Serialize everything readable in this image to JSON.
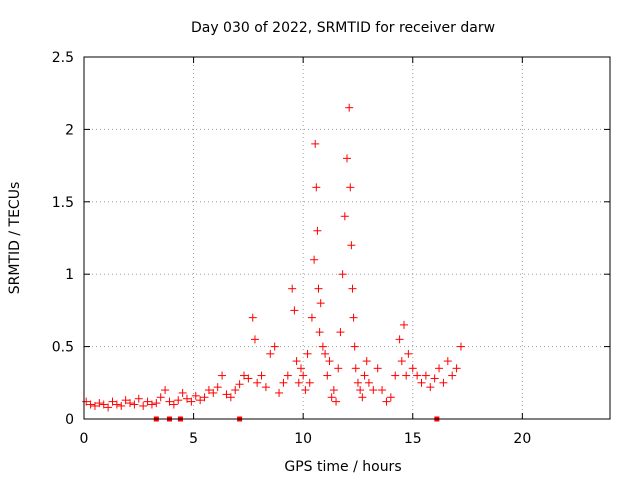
{
  "chart_data": {
    "type": "scatter",
    "title": "Day 030 of 2022, SRMTID for receiver darw",
    "xlabel": "GPS time / hours",
    "ylabel": "SRMTID / TECUs",
    "xlim": [
      0,
      24
    ],
    "ylim": [
      0,
      2.5
    ],
    "x_ticks": [
      0,
      5,
      10,
      15,
      20
    ],
    "x_tick_labels": [
      "0",
      "5",
      "10",
      "15",
      "20"
    ],
    "y_ticks": [
      0,
      0.5,
      1,
      1.5,
      2,
      2.5
    ],
    "y_tick_labels": [
      "0",
      "0.5",
      "1",
      "1.5",
      "2",
      "2.5"
    ],
    "grid": true,
    "marker": "+",
    "color": "#ff0000",
    "series": [
      {
        "name": "SRMTID",
        "x": [
          0.1,
          0.3,
          0.5,
          0.7,
          0.9,
          1.1,
          1.3,
          1.5,
          1.7,
          1.9,
          2.1,
          2.3,
          2.5,
          2.7,
          2.9,
          3.1,
          3.3,
          3.5,
          3.7,
          3.9,
          4.1,
          4.3,
          4.5,
          4.7,
          4.9,
          5.1,
          5.3,
          5.5,
          5.7,
          5.9,
          6.1,
          6.3,
          6.5,
          6.7,
          6.9,
          7.1,
          7.3,
          7.5,
          7.7,
          7.8,
          7.9,
          8.1,
          8.3,
          8.5,
          8.7,
          8.9,
          9.1,
          9.3,
          9.5,
          9.6,
          9.7,
          9.8,
          9.9,
          10.0,
          10.1,
          10.2,
          10.3,
          10.4,
          10.5,
          10.55,
          10.6,
          10.65,
          10.7,
          10.75,
          10.8,
          10.9,
          11.0,
          11.1,
          11.2,
          11.3,
          11.4,
          11.5,
          11.6,
          11.7,
          11.8,
          11.9,
          12.0,
          12.1,
          12.15,
          12.2,
          12.25,
          12.3,
          12.35,
          12.4,
          12.5,
          12.6,
          12.7,
          12.8,
          12.9,
          13.0,
          13.2,
          13.4,
          13.6,
          13.8,
          14.0,
          14.2,
          14.4,
          14.5,
          14.6,
          14.7,
          14.8,
          15.0,
          15.2,
          15.4,
          15.6,
          15.8,
          16.0,
          16.2,
          16.4,
          16.6,
          16.8,
          17.0,
          17.2
        ],
        "y": [
          0.12,
          0.1,
          0.09,
          0.11,
          0.1,
          0.08,
          0.12,
          0.1,
          0.09,
          0.13,
          0.11,
          0.1,
          0.14,
          0.09,
          0.12,
          0.1,
          0.11,
          0.15,
          0.2,
          0.12,
          0.1,
          0.13,
          0.18,
          0.14,
          0.12,
          0.16,
          0.13,
          0.15,
          0.2,
          0.18,
          0.22,
          0.3,
          0.17,
          0.15,
          0.2,
          0.24,
          0.3,
          0.28,
          0.7,
          0.55,
          0.25,
          0.3,
          0.22,
          0.45,
          0.5,
          0.18,
          0.25,
          0.3,
          0.9,
          0.75,
          0.4,
          0.25,
          0.35,
          0.3,
          0.2,
          0.45,
          0.25,
          0.7,
          1.1,
          1.9,
          1.6,
          1.3,
          0.9,
          0.6,
          0.8,
          0.5,
          0.45,
          0.3,
          0.4,
          0.15,
          0.2,
          0.12,
          0.35,
          0.6,
          1.0,
          1.4,
          1.8,
          2.15,
          1.6,
          1.2,
          0.9,
          0.7,
          0.5,
          0.35,
          0.25,
          0.2,
          0.15,
          0.3,
          0.4,
          0.25,
          0.2,
          0.35,
          0.2,
          0.12,
          0.15,
          0.3,
          0.55,
          0.4,
          0.65,
          0.3,
          0.45,
          0.35,
          0.3,
          0.25,
          0.3,
          0.22,
          0.28,
          0.35,
          0.25,
          0.4,
          0.3,
          0.35,
          0.5
        ]
      }
    ],
    "baseline_marks_x": [
      3.3,
      3.9,
      4.4,
      7.1,
      16.1
    ]
  }
}
